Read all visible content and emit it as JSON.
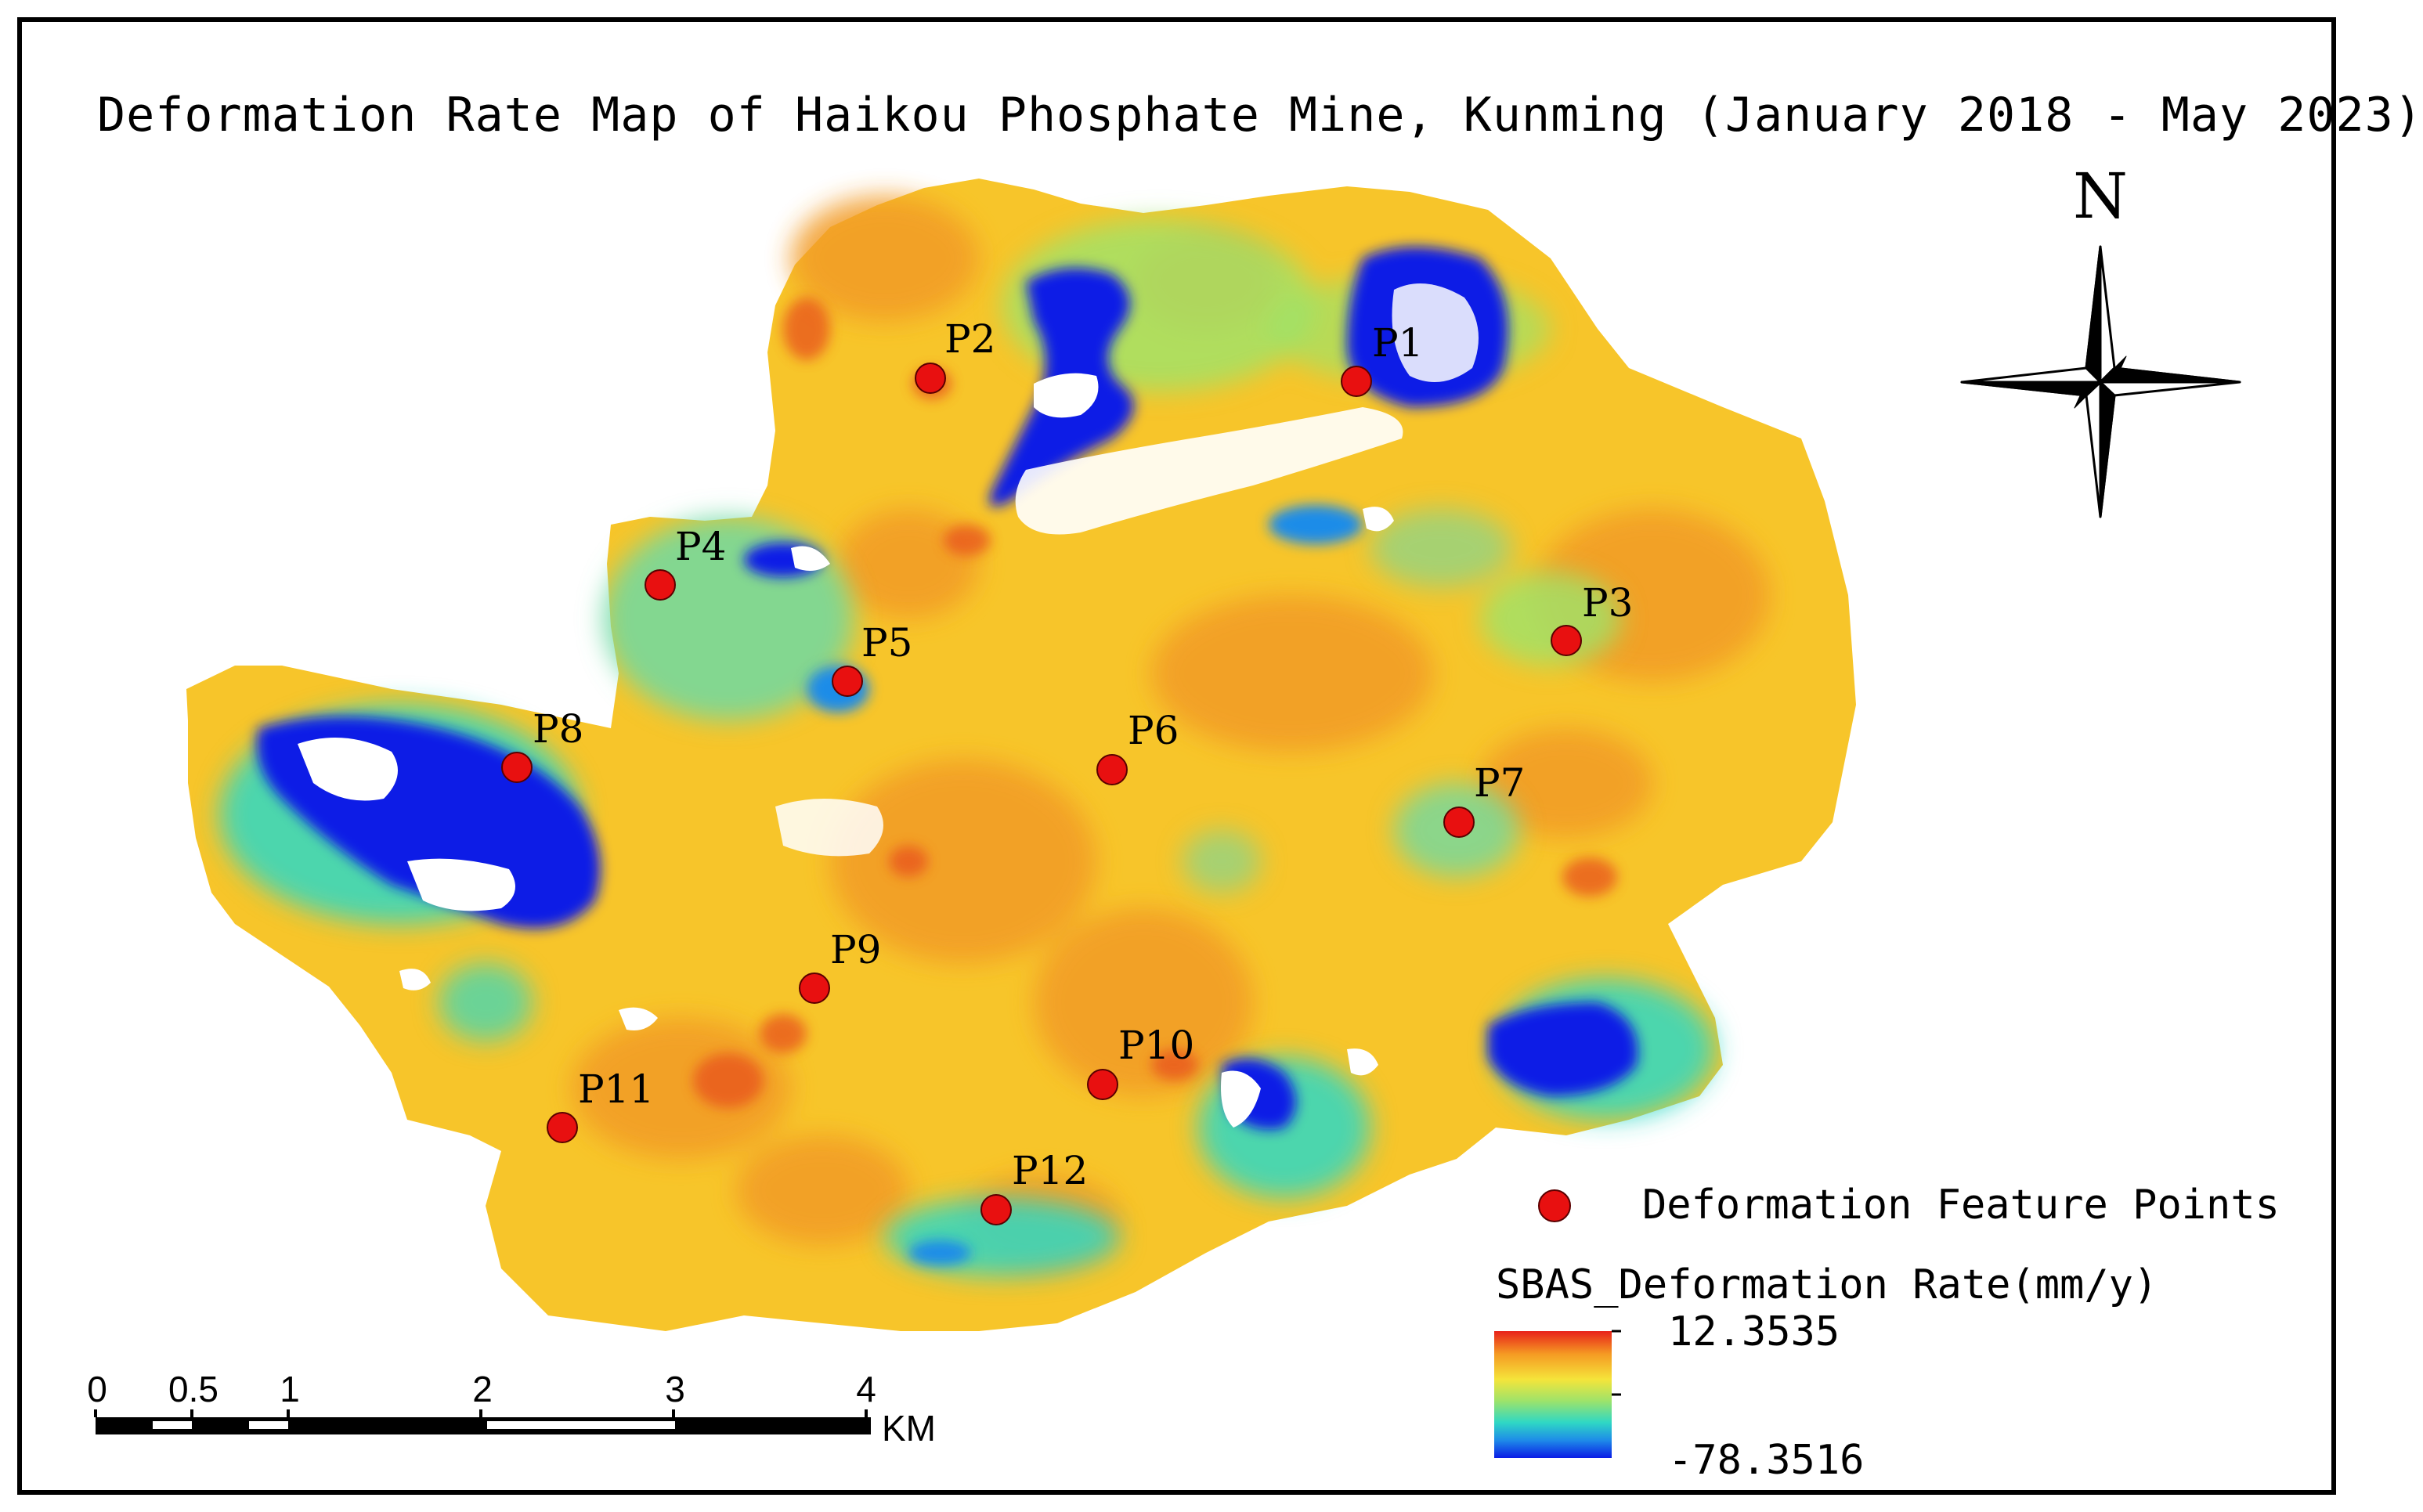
{
  "title": "Deformation Rate Map of Haikou Phosphate Mine, Kunming (January 2018 - May 2023)",
  "north_label": "N",
  "points": [
    {
      "label": "P1"
    },
    {
      "label": "P2"
    },
    {
      "label": "P3"
    },
    {
      "label": "P4"
    },
    {
      "label": "P5"
    },
    {
      "label": "P6"
    },
    {
      "label": "P7"
    },
    {
      "label": "P8"
    },
    {
      "label": "P9"
    },
    {
      "label": "P10"
    },
    {
      "label": "P11"
    },
    {
      "label": "P12"
    }
  ],
  "legend": {
    "points_label": "Deformation Feature Points",
    "ramp_title": "SBAS_Deformation Rate(mm/y)",
    "max_value": "12.3535",
    "min_value": "-78.3516"
  },
  "scale_bar": {
    "ticks": [
      "0",
      "0.5",
      "1",
      "2",
      "3",
      "4"
    ],
    "unit": "KM"
  },
  "colors": {
    "point": "#e81010",
    "ramp_high": "#e8211a",
    "ramp_mid_high": "#f5e43a",
    "ramp_mid": "#2fd8c4",
    "ramp_low": "#0a1ce6",
    "base": "#f7c52a",
    "strong_subsidence": "#0816d8"
  }
}
